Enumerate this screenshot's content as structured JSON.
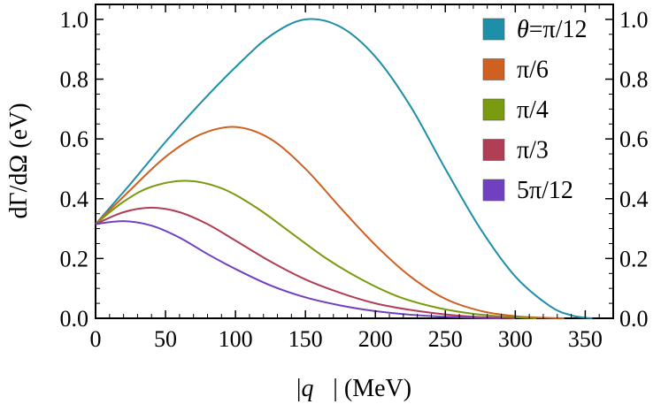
{
  "chart_data": {
    "type": "line",
    "xlabel": "|q⃗| (MeV)",
    "xlabel_parts": {
      "symbol": "q⃗",
      "unit": "(MeV)"
    },
    "ylabel": "dΓ/dΩ (eV)",
    "xlim": [
      0,
      370
    ],
    "ylim": [
      0,
      1.05
    ],
    "x_ticks": [
      0,
      50,
      100,
      150,
      200,
      250,
      300,
      350
    ],
    "x_tick_labels": [
      "0",
      "50",
      "100",
      "150",
      "200",
      "250",
      "300",
      "350"
    ],
    "y_ticks": [
      0.0,
      0.2,
      0.4,
      0.6,
      0.8,
      1.0
    ],
    "y_tick_labels": [
      "0.0",
      "0.2",
      "0.4",
      "0.6",
      "0.8",
      "1.0"
    ],
    "right_axis_mirrored": true,
    "grid": false,
    "legend_position": "top-right",
    "series": [
      {
        "name": "θ=π/12",
        "legend_prefix": "θ",
        "legend_rest": "=π/12",
        "color": "#1e8fa8",
        "x": [
          0,
          25,
          50,
          75,
          100,
          125,
          150,
          175,
          200,
          225,
          250,
          275,
          300,
          325,
          340,
          350,
          355
        ],
        "y": [
          0.315,
          0.45,
          0.59,
          0.72,
          0.84,
          0.945,
          1.0,
          0.975,
          0.875,
          0.71,
          0.5,
          0.3,
          0.14,
          0.04,
          0.01,
          0.002,
          0.0
        ]
      },
      {
        "name": "π/6",
        "color": "#d06020",
        "x": [
          0,
          25,
          50,
          75,
          100,
          125,
          150,
          175,
          200,
          225,
          250,
          275,
          300,
          320,
          335
        ],
        "y": [
          0.315,
          0.43,
          0.54,
          0.615,
          0.64,
          0.6,
          0.5,
          0.37,
          0.245,
          0.14,
          0.065,
          0.025,
          0.007,
          0.002,
          0.0
        ]
      },
      {
        "name": "π/4",
        "color": "#7a9a10",
        "x": [
          0,
          20,
          40,
          65,
          90,
          115,
          140,
          165,
          190,
          215,
          240,
          265,
          290,
          315
        ],
        "y": [
          0.315,
          0.39,
          0.44,
          0.46,
          0.435,
          0.37,
          0.285,
          0.2,
          0.13,
          0.075,
          0.04,
          0.018,
          0.006,
          0.0
        ]
      },
      {
        "name": "π/3",
        "color": "#b03e55",
        "x": [
          0,
          20,
          40,
          60,
          80,
          100,
          125,
          150,
          175,
          200,
          225,
          250,
          275,
          300
        ],
        "y": [
          0.315,
          0.355,
          0.37,
          0.355,
          0.315,
          0.26,
          0.19,
          0.13,
          0.085,
          0.05,
          0.028,
          0.013,
          0.004,
          0.0
        ]
      },
      {
        "name": "5π/12",
        "color": "#7040c0",
        "x": [
          0,
          20,
          40,
          60,
          80,
          100,
          125,
          150,
          175,
          200,
          225,
          250,
          275,
          290
        ],
        "y": [
          0.315,
          0.325,
          0.31,
          0.27,
          0.215,
          0.165,
          0.11,
          0.07,
          0.043,
          0.024,
          0.012,
          0.005,
          0.001,
          0.0
        ]
      }
    ]
  }
}
